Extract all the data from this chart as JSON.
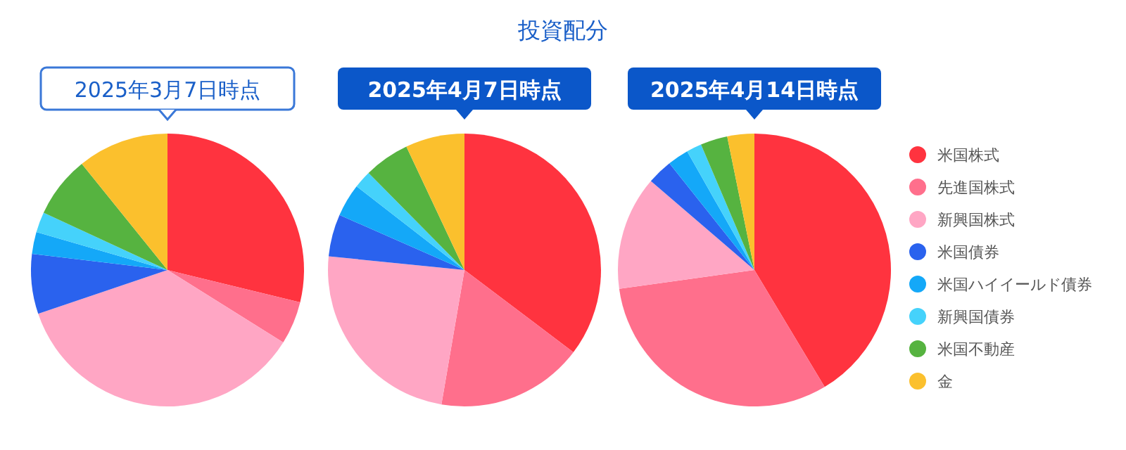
{
  "chart_data": [
    {
      "type": "other",
      "title": "投資配分"
    },
    {
      "type": "pie",
      "subtitle": "2025年3月7日時点",
      "categories": [
        null,
        null,
        null,
        null,
        null,
        null,
        null,
        null
      ],
      "values": [
        28.8,
        5.1,
        35.9,
        7.1,
        2.6,
        2.4,
        7.3,
        10.8
      ],
      "colors": [
        "#ff333f",
        "#ff6f8c",
        "#ffa6c4",
        "#2a62ee",
        "#14a8f8",
        "#45d2fb",
        "#56b340",
        "#fbc02d"
      ]
    },
    {
      "type": "pie",
      "subtitle": "2025年4月7日時点",
      "categories": [
        null,
        null,
        null,
        null,
        null,
        null,
        null,
        null
      ],
      "values": [
        35.3,
        17.4,
        23.9,
        5.0,
        3.9,
        2.1,
        5.4,
        7.0
      ],
      "colors": [
        "#ff333f",
        "#ff6f8c",
        "#ffa6c4",
        "#2a62ee",
        "#14a8f8",
        "#45d2fb",
        "#56b340",
        "#fbc02d"
      ]
    },
    {
      "type": "pie",
      "subtitle": "2025年4月14日時点",
      "categories": [
        "米国株式",
        "先進国株式",
        "新興国株式",
        "米国債券",
        "米国ハイイールド債券",
        "新興国債券",
        "米国不動産",
        "金"
      ],
      "values": [
        41.4,
        31.4,
        13.5,
        3.0,
        2.5,
        1.8,
        3.2,
        3.2
      ],
      "colors": [
        "#ff333f",
        "#ff6f8c",
        "#ffa6c4",
        "#2a62ee",
        "#14a8f8",
        "#45d2fb",
        "#56b340",
        "#fbc02d"
      ],
      "legend": "right"
    }
  ]
}
